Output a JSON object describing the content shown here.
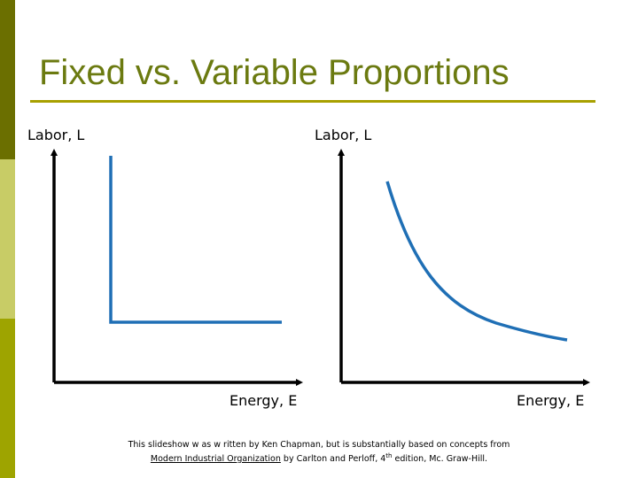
{
  "slide": {
    "title": "Fixed vs. Variable Proportions",
    "colors": {
      "title": "#6b7a10",
      "rule": "#a8a000",
      "bar_top": "#6b6f00",
      "bar_mid": "#c8cc66",
      "bar_bottom": "#9ea400",
      "curve": "#1f6fb5",
      "axis": "#000000"
    }
  },
  "left_graph": {
    "y_axis_label": "Labor, L",
    "x_axis_label": "Energy, E",
    "curve_type": "L-shaped isoquant"
  },
  "right_graph": {
    "y_axis_label": "Labor, L",
    "x_axis_label": "Energy, E",
    "curve_type": "convex isoquant"
  },
  "footer": {
    "line1": "This slideshow w as w ritten by Ken Chapman, but is substantially based on concepts from",
    "book_title": "Modern Industrial Organization",
    "by_authors": " by Carlton and Perloff, 4",
    "edition_sup": "th",
    "edition_rest": " edition, Mc. Graw-Hill."
  }
}
